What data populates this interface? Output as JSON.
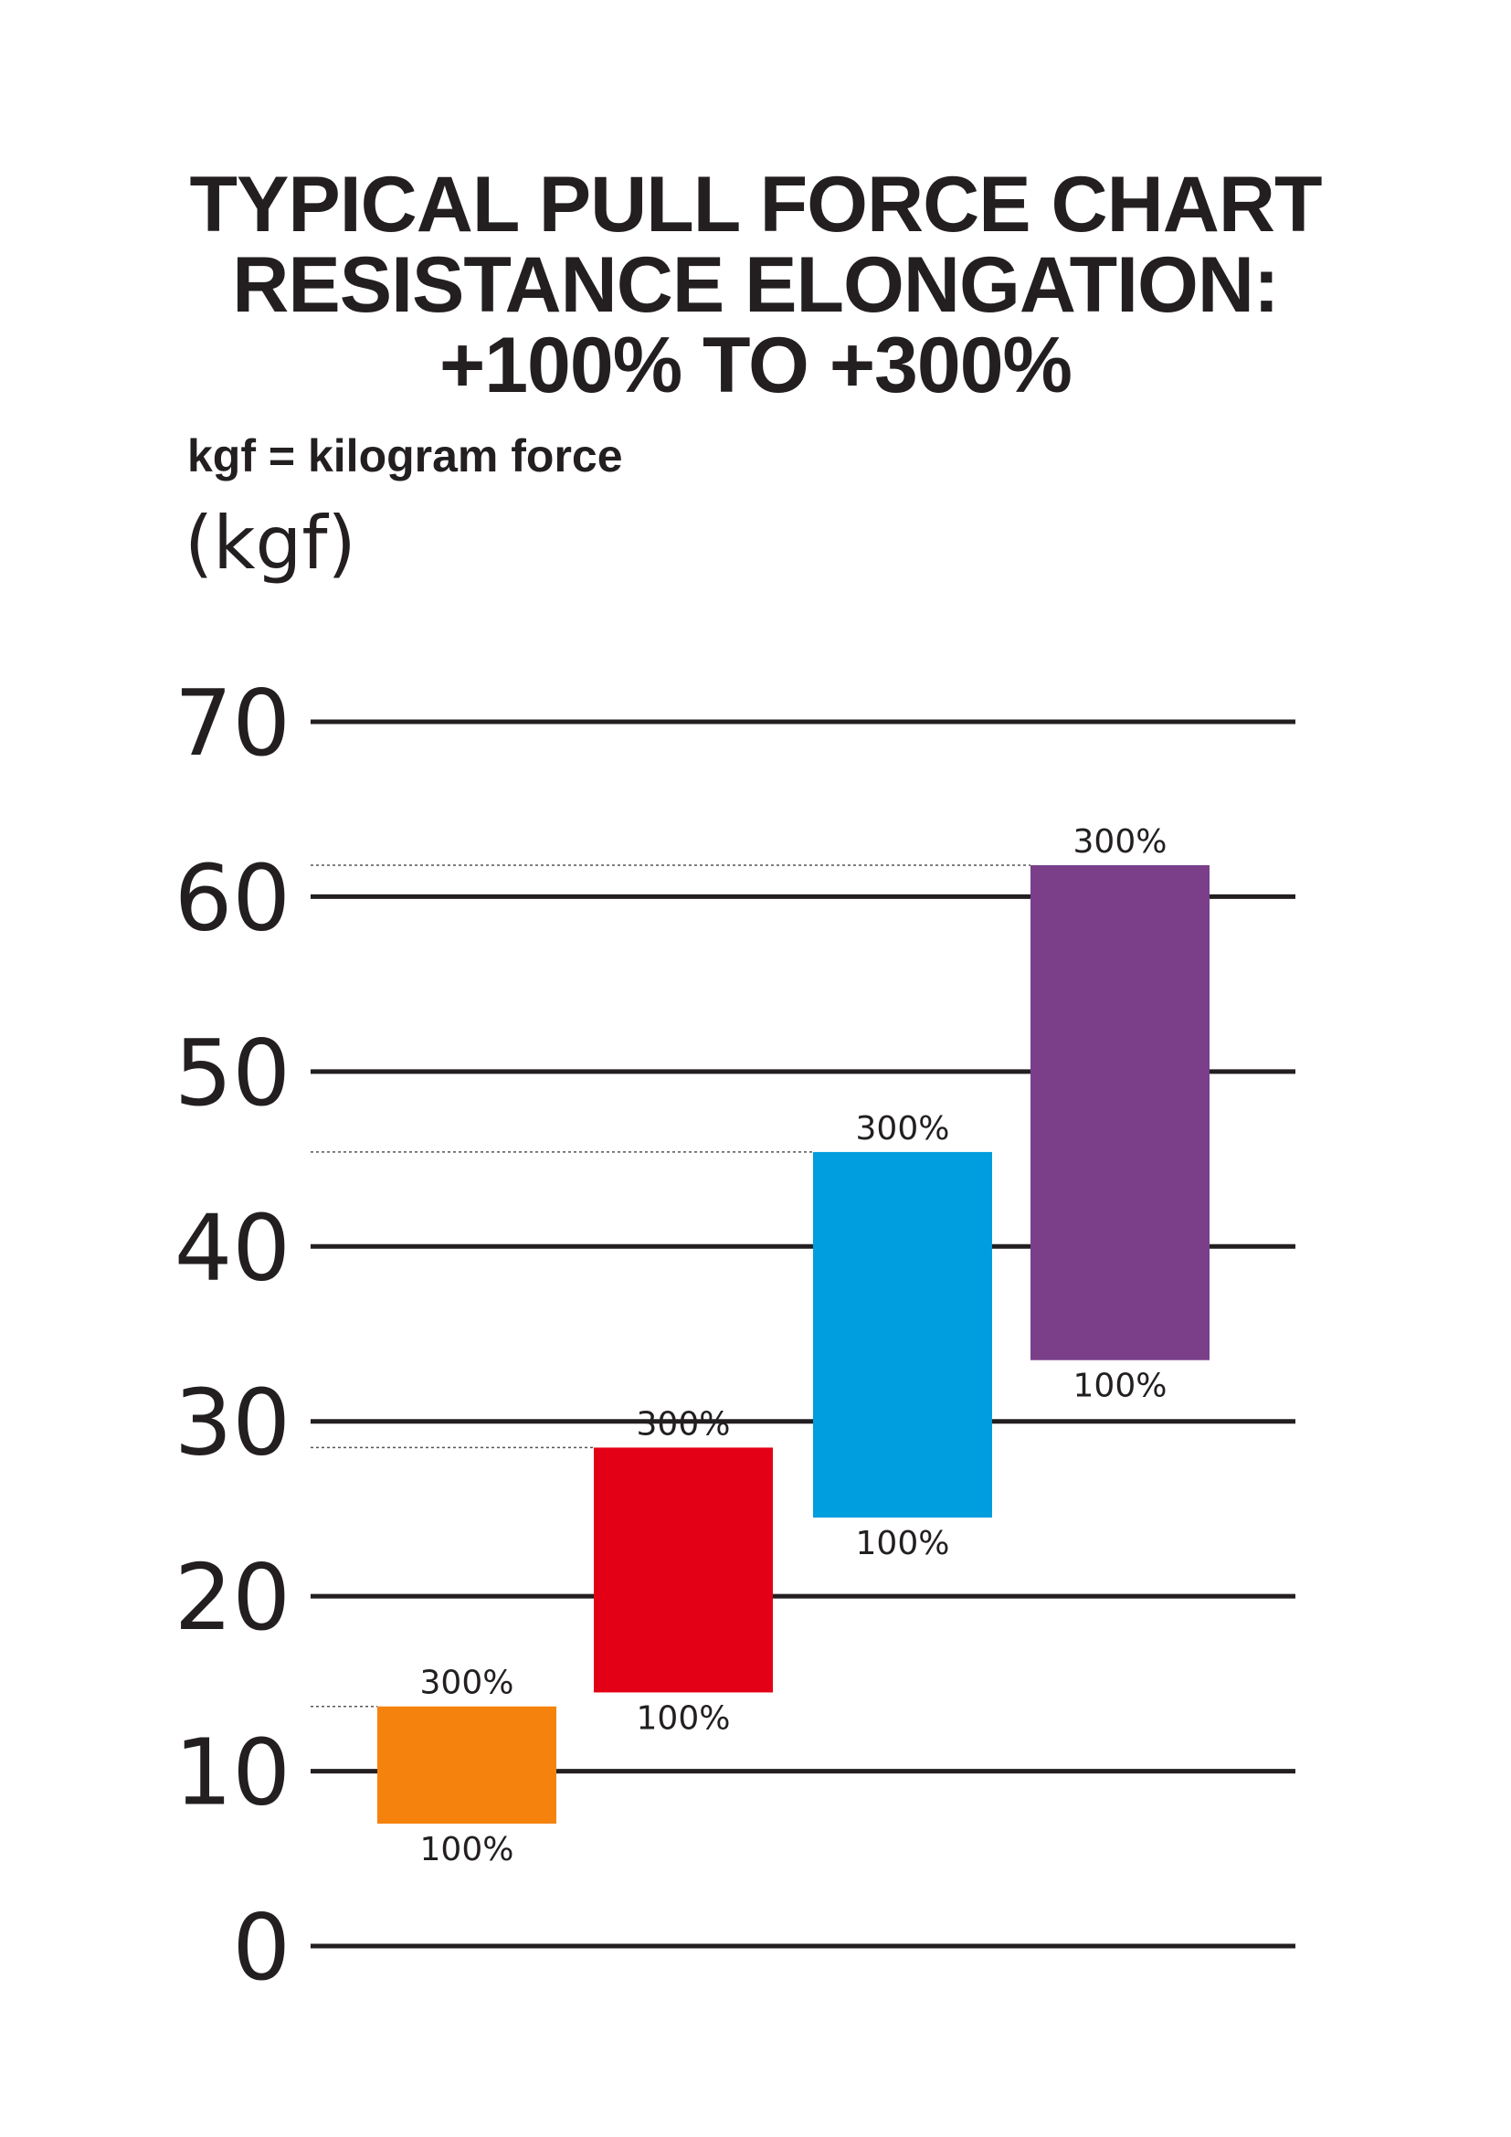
{
  "title": {
    "line1": "TYPICAL PULL FORCE CHART",
    "line2": "RESISTANCE ELONGATION:",
    "line3": "+100% TO +300%"
  },
  "note": "kgf = kilogram force",
  "chart_data": {
    "type": "bar",
    "subtype": "floating-range",
    "title": "TYPICAL PULL FORCE CHART RESISTANCE ELONGATION: +100% TO +300%",
    "ylabel": "(kgf)",
    "xlabel": "",
    "ylim": [
      0,
      70
    ],
    "yticks": [
      "0",
      "10",
      "20",
      "30",
      "40",
      "50",
      "60",
      "70"
    ],
    "grid": true,
    "low_label": "100%",
    "high_label": "300%",
    "series": [
      {
        "name": "Orange",
        "color": "#f5820d",
        "low": 7,
        "high": 13.7
      },
      {
        "name": "Red",
        "color": "#e30016",
        "low": 14.5,
        "high": 28.5
      },
      {
        "name": "Blue",
        "color": "#009ddf",
        "low": 24.5,
        "high": 45.4
      },
      {
        "name": "Purple",
        "color": "#7b3f8a",
        "low": 33.5,
        "high": 61.8
      }
    ]
  }
}
